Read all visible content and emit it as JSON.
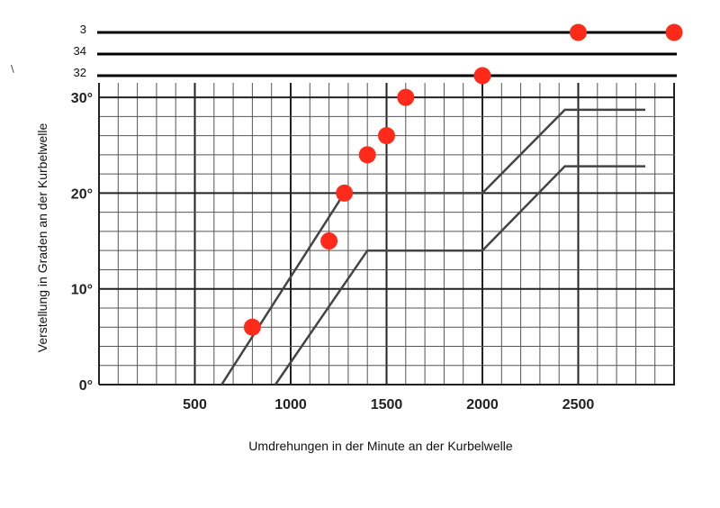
{
  "chart_data": {
    "type": "line",
    "xlabel": "Umdrehungen in der Minute an der Kurbelwelle",
    "ylabel": "Verstellung in Graden an der Kurbelwelle",
    "xlim": [
      0,
      3000
    ],
    "ylim": [
      0,
      30
    ],
    "x_ticks": [
      {
        "value": 500,
        "label": "500"
      },
      {
        "value": 1000,
        "label": "1000"
      },
      {
        "value": 1500,
        "label": "1500"
      },
      {
        "value": 2000,
        "label": "2000"
      },
      {
        "value": 2500,
        "label": "2500"
      }
    ],
    "y_ticks": [
      {
        "value": 0,
        "label": "0°"
      },
      {
        "value": 10,
        "label": "10°"
      },
      {
        "value": 20,
        "label": "20°"
      },
      {
        "value": 30,
        "label": "30°"
      }
    ],
    "grid": true,
    "series": [
      {
        "x": [
          640,
          1280,
          2000,
          2430,
          2850
        ],
        "y": [
          0,
          20,
          20,
          28.7,
          28.7
        ],
        "color": "#444444"
      },
      {
        "x": [
          920,
          1400,
          2000,
          2430,
          2850
        ],
        "y": [
          0,
          14,
          14,
          22.8,
          22.8
        ],
        "color": "#444444"
      }
    ],
    "scatter": {
      "color": "#ff2a1a",
      "points": [
        [
          800,
          6
        ],
        [
          1200,
          15
        ],
        [
          1280,
          20
        ],
        [
          1400,
          24
        ],
        [
          1500,
          26
        ],
        [
          1600,
          30
        ],
        [
          2000,
          32
        ],
        [
          2500,
          34
        ],
        [
          3000,
          34
        ]
      ]
    },
    "reference_lines": [
      {
        "label": "3",
        "color": "#000000"
      },
      {
        "label": "34",
        "color": "#000000"
      },
      {
        "label": "32",
        "color": "#000000"
      }
    ],
    "stray_mark": "\\"
  }
}
